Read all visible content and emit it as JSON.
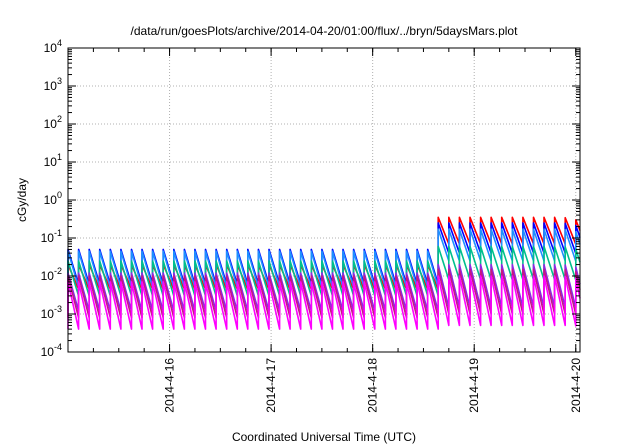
{
  "chart_data": {
    "type": "line",
    "title": "/data/run/goesPlots/archive/2014-04-20/01:00/flux/../bryn/5daysMars.plot",
    "xlabel": "Coordinated Universal Time (UTC)",
    "ylabel": "cGy/day",
    "yscale": "log",
    "ylim": [
      0.0001,
      10000
    ],
    "xlim": [
      "2014-04-15T00:00",
      "2014-04-20T01:00"
    ],
    "grid": true,
    "x_ticks": [
      "2014-4-16",
      "2014-4-17",
      "2014-4-18",
      "2014-4-19",
      "2014-4-20"
    ],
    "y_ticks": [
      {
        "value": 0.0001,
        "base": "10",
        "exp": "-4"
      },
      {
        "value": 0.001,
        "base": "10",
        "exp": "-3"
      },
      {
        "value": 0.01,
        "base": "10",
        "exp": "-2"
      },
      {
        "value": 0.1,
        "base": "10",
        "exp": "-1"
      },
      {
        "value": 1,
        "base": "10",
        "exp": "0"
      },
      {
        "value": 10,
        "base": "10",
        "exp": "1"
      },
      {
        "value": 100,
        "base": "10",
        "exp": "2"
      },
      {
        "value": 1000,
        "base": "10",
        "exp": "3"
      },
      {
        "value": 10000,
        "base": "10",
        "exp": "4"
      }
    ],
    "cycle_hours": 2.5,
    "event_start": "2014-04-18T15:00",
    "series": [
      {
        "color": "#ff0000",
        "quiet_peak": 0.02,
        "quiet_trough": 0.0045,
        "event_peak": 0.35,
        "event_trough": 0.07
      },
      {
        "color": "#0000ff",
        "quiet_peak": 0.05,
        "quiet_trough": 0.006,
        "event_peak": 0.25,
        "event_trough": 0.04
      },
      {
        "color": "#1e90ff",
        "quiet_peak": 0.045,
        "quiet_trough": 0.005,
        "event_peak": 0.17,
        "event_trough": 0.025
      },
      {
        "color": "#00c08c",
        "quiet_peak": 0.025,
        "quiet_trough": 0.003,
        "event_peak": 0.06,
        "event_trough": 0.008
      },
      {
        "color": "#8a2be2",
        "quiet_peak": 0.012,
        "quiet_trough": 0.0012,
        "event_peak": 0.02,
        "event_trough": 0.0015
      },
      {
        "color": "#c71585",
        "quiet_peak": 0.01,
        "quiet_trough": 0.0008,
        "event_peak": 0.015,
        "event_trough": 0.001
      },
      {
        "color": "#ff00ff",
        "quiet_peak": 0.007,
        "quiet_trough": 0.0004,
        "event_peak": 0.01,
        "event_trough": 0.0005
      }
    ]
  }
}
